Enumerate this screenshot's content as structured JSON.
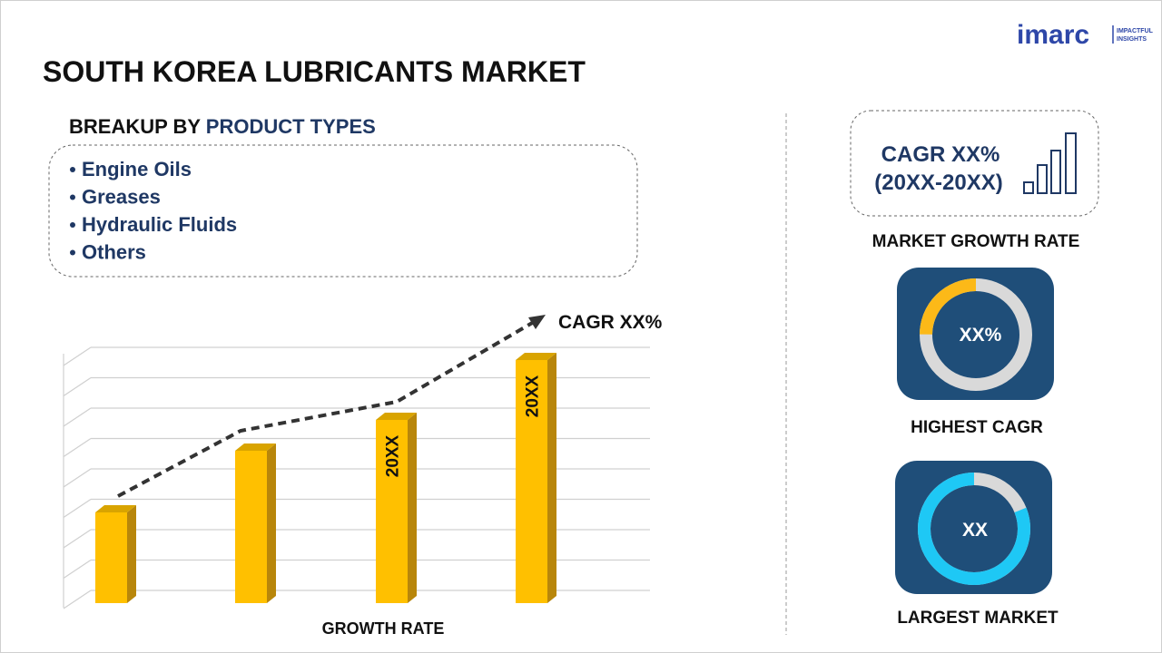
{
  "brand": {
    "name": "imarc",
    "tagline": [
      "IMPACTFUL",
      "INSIGHTS"
    ]
  },
  "title": "SOUTH KOREA LUBRICANTS MARKET",
  "breakup": {
    "label": "BREAKUP BY",
    "highlight": "PRODUCT TYPES",
    "items": [
      "Engine Oils",
      "Greases",
      "Hydraulic Fluids",
      "Others"
    ]
  },
  "growth_chart": {
    "bar_labels": [
      "20XX",
      "20XX"
    ],
    "trend_label": "CAGR XX%",
    "axis_label": "GROWTH RATE"
  },
  "cards": [
    {
      "text": [
        "CAGR XX%",
        "(20XX-20XX)"
      ],
      "caption": "MARKET GROWTH RATE"
    },
    {
      "text": "XX%",
      "caption": "HIGHEST CAGR"
    },
    {
      "text": "XX",
      "caption": "LARGEST MARKET"
    }
  ]
}
